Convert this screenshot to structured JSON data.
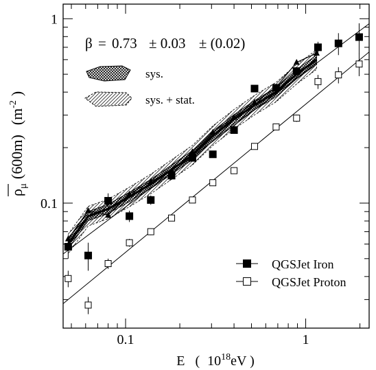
{
  "chart_data": {
    "type": "scatter",
    "title": "",
    "xlabel": {
      "main": "E",
      "open": "(",
      "mantissa": "10",
      "exponent": "18",
      "unit": "eV",
      "close": ")"
    },
    "ylabel": {
      "symbol": "ρ",
      "subscript": "μ",
      "arg": "(600m)",
      "unit_open": "(m",
      "unit_exp": "-2",
      "unit_close": ")"
    },
    "xscale": "log",
    "yscale": "log",
    "xlim": [
      0.045,
      2.25
    ],
    "ylim": [
      0.021,
      1.2
    ],
    "x_ticklabels": [
      {
        "value": 0.1,
        "label": "0.1"
      },
      {
        "value": 1,
        "label": "1"
      }
    ],
    "y_ticklabels": [
      {
        "value": 0.1,
        "label": "0.1"
      },
      {
        "value": 1,
        "label": "1"
      }
    ],
    "annotation": {
      "beta_symbol": "β",
      "equals": "=",
      "value": "0.73",
      "stat": "± 0.03",
      "sys": "± (0.02)"
    },
    "band_legend": [
      {
        "label": "sys.",
        "style": "crosshatch"
      },
      {
        "label": "sys. + stat.",
        "style": "hatch"
      }
    ],
    "series": [
      {
        "name": "QGSJet Iron",
        "marker": "filled-square",
        "points": [
          {
            "x": 0.048,
            "y": 0.058,
            "err": 0.008
          },
          {
            "x": 0.062,
            "y": 0.052,
            "err": 0.009
          },
          {
            "x": 0.08,
            "y": 0.103,
            "err": 0.01
          },
          {
            "x": 0.105,
            "y": 0.085,
            "err": 0.006
          },
          {
            "x": 0.138,
            "y": 0.104,
            "err": 0.006
          },
          {
            "x": 0.18,
            "y": 0.141,
            "err": 0.007
          },
          {
            "x": 0.235,
            "y": 0.176,
            "err": 0.008
          },
          {
            "x": 0.305,
            "y": 0.184,
            "err": 0.008
          },
          {
            "x": 0.4,
            "y": 0.249,
            "err": 0.01
          },
          {
            "x": 0.52,
            "y": 0.418,
            "err": 0.015
          },
          {
            "x": 0.685,
            "y": 0.422,
            "err": 0.018
          },
          {
            "x": 0.89,
            "y": 0.52,
            "err": 0.025
          },
          {
            "x": 1.17,
            "y": 0.7,
            "err": 0.05
          },
          {
            "x": 1.52,
            "y": 0.735,
            "err": 0.1
          },
          {
            "x": 1.98,
            "y": 0.795,
            "err": 0.15
          }
        ]
      },
      {
        "name": "QGSJet Proton",
        "marker": "open-square",
        "points": [
          {
            "x": 0.048,
            "y": 0.039,
            "err": 0.004
          },
          {
            "x": 0.062,
            "y": 0.028,
            "err": 0.003
          },
          {
            "x": 0.08,
            "y": 0.047,
            "err": 0.003
          },
          {
            "x": 0.105,
            "y": 0.061,
            "err": 0.003
          },
          {
            "x": 0.138,
            "y": 0.07,
            "err": 0.003
          },
          {
            "x": 0.18,
            "y": 0.083,
            "err": 0.003
          },
          {
            "x": 0.235,
            "y": 0.104,
            "err": 0.004
          },
          {
            "x": 0.305,
            "y": 0.129,
            "err": 0.005
          },
          {
            "x": 0.4,
            "y": 0.15,
            "err": 0.006
          },
          {
            "x": 0.52,
            "y": 0.203,
            "err": 0.008
          },
          {
            "x": 0.685,
            "y": 0.259,
            "err": 0.01
          },
          {
            "x": 0.89,
            "y": 0.289,
            "err": 0.013
          },
          {
            "x": 1.17,
            "y": 0.456,
            "err": 0.04
          },
          {
            "x": 1.52,
            "y": 0.496,
            "err": 0.05
          },
          {
            "x": 1.98,
            "y": 0.568,
            "err": 0.08
          }
        ]
      }
    ],
    "fit_lines": [
      {
        "series": "QGSJet Iron",
        "x": [
          0.045,
          2.25
        ],
        "y": [
          0.053,
          0.94
        ]
      },
      {
        "series": "QGSJet Proton",
        "x": [
          0.045,
          2.25
        ],
        "y": [
          0.0285,
          0.66
        ]
      }
    ],
    "data_band": {
      "central": [
        {
          "x": 0.048,
          "y": 0.06
        },
        {
          "x": 0.062,
          "y": 0.085
        },
        {
          "x": 0.08,
          "y": 0.093
        },
        {
          "x": 0.105,
          "y": 0.108
        },
        {
          "x": 0.138,
          "y": 0.127
        },
        {
          "x": 0.18,
          "y": 0.152
        },
        {
          "x": 0.235,
          "y": 0.182
        },
        {
          "x": 0.305,
          "y": 0.232
        },
        {
          "x": 0.4,
          "y": 0.285
        },
        {
          "x": 0.52,
          "y": 0.34
        },
        {
          "x": 0.685,
          "y": 0.4
        },
        {
          "x": 0.89,
          "y": 0.5
        },
        {
          "x": 1.15,
          "y": 0.6
        }
      ],
      "sys_frac": 0.06,
      "stat_frac": 0.13
    },
    "model_curves": [
      {
        "marker": "filled-triangle",
        "points": [
          {
            "x": 0.048,
            "y": 0.064
          },
          {
            "x": 0.062,
            "y": 0.091
          },
          {
            "x": 0.08,
            "y": 0.086
          },
          {
            "x": 0.105,
            "y": 0.112
          },
          {
            "x": 0.138,
            "y": 0.131
          },
          {
            "x": 0.18,
            "y": 0.149
          },
          {
            "x": 0.235,
            "y": 0.19
          },
          {
            "x": 0.305,
            "y": 0.242
          },
          {
            "x": 0.4,
            "y": 0.292
          },
          {
            "x": 0.52,
            "y": 0.352
          },
          {
            "x": 0.685,
            "y": 0.425
          },
          {
            "x": 0.89,
            "y": 0.58
          },
          {
            "x": 1.15,
            "y": 0.65
          }
        ]
      }
    ],
    "legend_position": "bottom-right",
    "grid": false
  }
}
